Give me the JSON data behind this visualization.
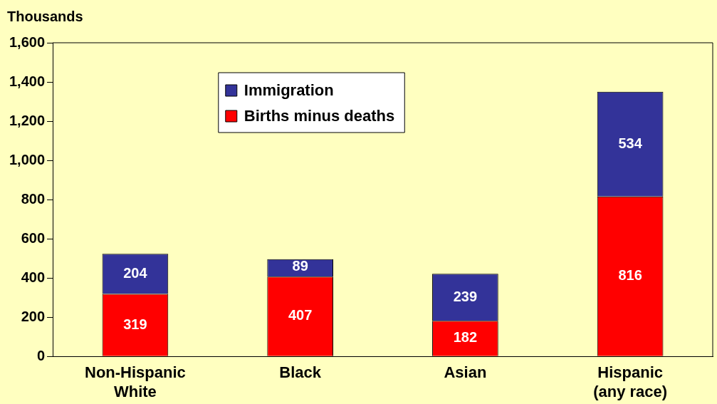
{
  "chart_data": {
    "type": "bar",
    "ylabel": "Thousands",
    "categories": [
      "Non-Hispanic White",
      "Black",
      "Asian",
      "Hispanic (any race)"
    ],
    "stacked": true,
    "series": [
      {
        "name": "Births minus deaths",
        "color": "#ff0000",
        "values": [
          319,
          407,
          182,
          816
        ]
      },
      {
        "name": "Immigration",
        "color": "#333399",
        "values": [
          204,
          89,
          239,
          534
        ]
      }
    ],
    "ylim": [
      0,
      1600
    ],
    "yticks": [
      {
        "value": 0,
        "label": "0"
      },
      {
        "value": 200,
        "label": "200"
      },
      {
        "value": 400,
        "label": "400"
      },
      {
        "value": 600,
        "label": "600"
      },
      {
        "value": 800,
        "label": "800"
      },
      {
        "value": 1000,
        "label": "1,000"
      },
      {
        "value": 1200,
        "label": "1,200"
      },
      {
        "value": 1400,
        "label": "1,400"
      },
      {
        "value": 1600,
        "label": "1,600"
      }
    ],
    "grid": false,
    "legend": "top",
    "data_labels": true
  }
}
